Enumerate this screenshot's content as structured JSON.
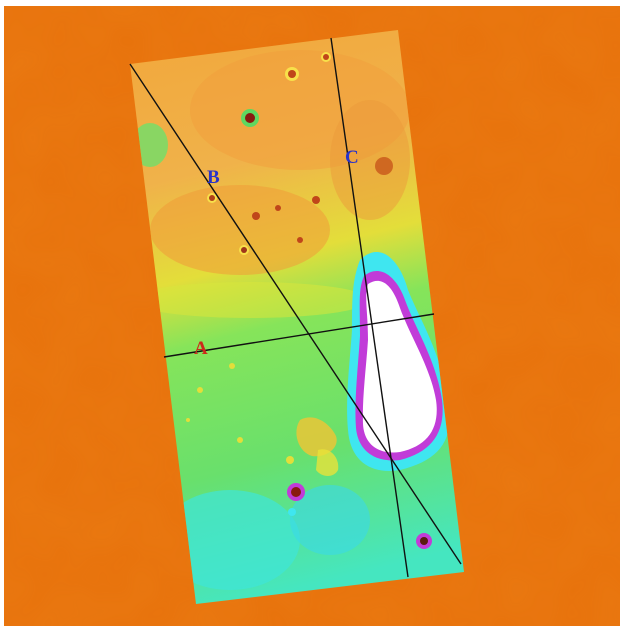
{
  "map": {
    "colors": {
      "background": "#e8720c",
      "high": "#e8720c",
      "mid_high": "#f2a63a",
      "mid": "#e7e23a",
      "low": "#7fe65a",
      "lower": "#35e6b8",
      "lowest": "#3fe6f0",
      "rim": "#c13cd8",
      "peak": "#ffffff",
      "crater": "#c0461a",
      "profile_line": "#111111"
    },
    "profiles": [
      {
        "name": "A",
        "label": "A",
        "color": "#cc2a1a"
      },
      {
        "name": "B",
        "label": "B",
        "color": "#2a33c9"
      },
      {
        "name": "C",
        "label": "C",
        "color": "#2a33c9"
      }
    ]
  }
}
